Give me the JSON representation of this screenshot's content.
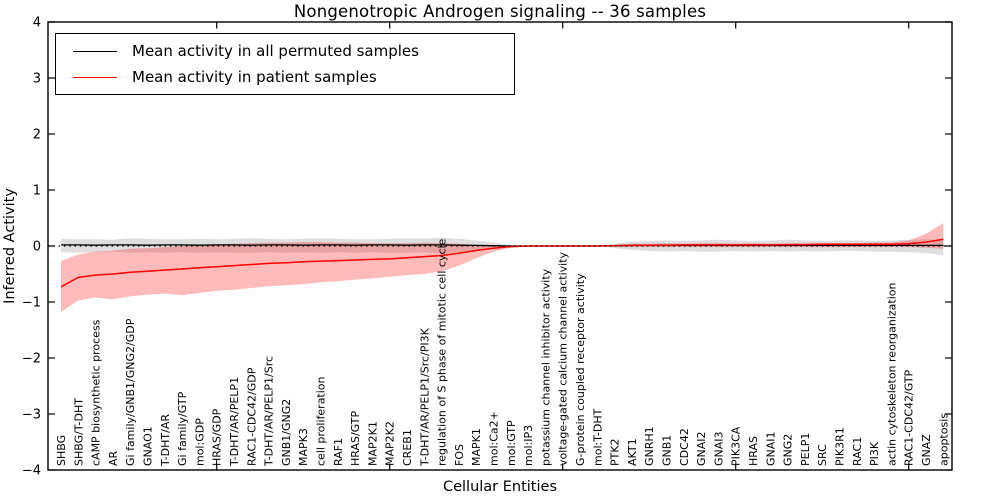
{
  "chart_data": {
    "type": "line",
    "title": "Nongenotropic Androgen signaling -- 36 samples",
    "xlabel": "Cellular Entities",
    "ylabel": "Inferred Activity",
    "ylim": [
      -4,
      4
    ],
    "yticks": [
      -4,
      -3,
      -2,
      -1,
      0,
      1,
      2,
      3,
      4
    ],
    "x_major_tick_every": 10,
    "grid": false,
    "legend_position": "upper left",
    "zero_reference_line": "dotted",
    "categories": [
      "SHBG",
      "SHBG/T-DHT",
      "cAMP biosynthetic process",
      "AR",
      "Gi family/GNB1/GNG2/GDP",
      "GNAO1",
      "T-DHT/AR",
      "Gi family/GTP",
      "mol:GDP",
      "HRAS/GDP",
      "T-DHT/AR/PELP1",
      "RAC1-CDC42/GDP",
      "T-DHT/AR/PELP1/Src",
      "GNB1/GNG2",
      "MAPK3",
      "cell proliferation",
      "RAF1",
      "HRAS/GTP",
      "MAP2K1",
      "MAP2K2",
      "CREB1",
      "T-DHT/AR/PELP1/Src/PI3K",
      "regulation of S phase of mitotic cell cycle",
      "FOS",
      "MAPK1",
      "mol:Ca2+",
      "mol:GTP",
      "mol:IP3",
      "potassium channel inhibitor activity",
      "voltage-gated calcium channel activity",
      "G-protein coupled receptor activity",
      "mol:T-DHT",
      "PTK2",
      "AKT1",
      "GNRH1",
      "GNB1",
      "CDC42",
      "GNAI2",
      "GNAI3",
      "PIK3CA",
      "HRAS",
      "GNAI1",
      "GNG2",
      "PELP1",
      "SRC",
      "PIK3R1",
      "RAC1",
      "PI3K",
      "actin cytoskeleton reorganization",
      "RAC1-CDC42/GTP",
      "GNAZ",
      "apoptosis"
    ],
    "series": [
      {
        "name": "Mean activity in all permuted samples",
        "color": "#000000",
        "band_color": "#000000",
        "band_opacity": 0.13,
        "values": [
          0.02,
          0.02,
          0.015,
          0.02,
          0.02,
          0.015,
          0.02,
          0.02,
          0.015,
          0.02,
          0.02,
          0.015,
          0.02,
          0.02,
          0.015,
          0.02,
          0.02,
          0.015,
          0.02,
          0.02,
          0.015,
          0.02,
          0.02,
          0.015,
          0.01,
          0.005,
          0,
          0,
          0,
          0,
          0,
          0,
          0.005,
          0.01,
          0.01,
          0.01,
          0.01,
          0.01,
          0.01,
          0.01,
          0.01,
          0.01,
          0.01,
          0.01,
          0.01,
          0.01,
          0.01,
          0.01,
          0.01,
          0.01,
          0.01,
          0.01
        ],
        "band_upper": [
          0.13,
          0.12,
          0.12,
          0.11,
          0.14,
          0.13,
          0.12,
          0.12,
          0.13,
          0.12,
          0.13,
          0.14,
          0.13,
          0.12,
          0.13,
          0.14,
          0.13,
          0.12,
          0.12,
          0.13,
          0.14,
          0.13,
          0.15,
          0.13,
          0.1,
          0.06,
          0.02,
          0,
          0,
          0,
          0,
          0,
          0.04,
          0.08,
          0.09,
          0.1,
          0.09,
          0.1,
          0.11,
          0.1,
          0.09,
          0.1,
          0.11,
          0.1,
          0.09,
          0.1,
          0.1,
          0.09,
          0.1,
          0.11,
          0.12,
          0.1
        ],
        "band_lower": [
          -0.11,
          -0.12,
          -0.11,
          -0.1,
          -0.12,
          -0.11,
          -0.12,
          -0.11,
          -0.12,
          -0.11,
          -0.12,
          -0.12,
          -0.11,
          -0.12,
          -0.11,
          -0.12,
          -0.11,
          -0.12,
          -0.11,
          -0.12,
          -0.12,
          -0.11,
          -0.13,
          -0.11,
          -0.09,
          -0.05,
          -0.02,
          0,
          0,
          0,
          0,
          0,
          -0.04,
          -0.07,
          -0.09,
          -0.1,
          -0.09,
          -0.1,
          -0.1,
          -0.09,
          -0.1,
          -0.09,
          -0.1,
          -0.09,
          -0.1,
          -0.09,
          -0.09,
          -0.1,
          -0.1,
          -0.11,
          -0.13,
          -0.16
        ]
      },
      {
        "name": "Mean activity in patient samples",
        "color": "#ff0000",
        "band_color": "#ff0000",
        "band_opacity": 0.27,
        "values": [
          -0.73,
          -0.56,
          -0.52,
          -0.5,
          -0.47,
          -0.45,
          -0.43,
          -0.41,
          -0.39,
          -0.37,
          -0.35,
          -0.33,
          -0.31,
          -0.3,
          -0.28,
          -0.27,
          -0.26,
          -0.25,
          -0.24,
          -0.23,
          -0.21,
          -0.19,
          -0.17,
          -0.13,
          -0.08,
          -0.04,
          -0.01,
          0,
          0,
          0,
          0,
          0,
          0.005,
          0.01,
          0.015,
          0.015,
          0.02,
          0.02,
          0.02,
          0.02,
          0.02,
          0.02,
          0.025,
          0.025,
          0.03,
          0.03,
          0.03,
          0.03,
          0.03,
          0.04,
          0.07,
          0.12
        ],
        "band_upper": [
          -0.27,
          -0.15,
          -0.1,
          -0.08,
          -0.05,
          -0.04,
          -0.02,
          0.0,
          0.02,
          0.03,
          0.04,
          0.05,
          0.06,
          0.06,
          0.07,
          0.07,
          0.06,
          0.06,
          0.05,
          0.05,
          0.05,
          0.06,
          0.05,
          0.04,
          0.02,
          0.01,
          0,
          0,
          0,
          0,
          0,
          0,
          0.02,
          0.04,
          0.04,
          0.05,
          0.04,
          0.05,
          0.05,
          0.04,
          0.05,
          0.04,
          0.05,
          0.05,
          0.05,
          0.05,
          0.05,
          0.06,
          0.06,
          0.1,
          0.22,
          0.41
        ],
        "band_lower": [
          -1.18,
          -0.97,
          -0.92,
          -0.95,
          -0.9,
          -0.87,
          -0.85,
          -0.88,
          -0.84,
          -0.8,
          -0.78,
          -0.75,
          -0.72,
          -0.7,
          -0.68,
          -0.65,
          -0.63,
          -0.6,
          -0.58,
          -0.55,
          -0.52,
          -0.5,
          -0.45,
          -0.35,
          -0.22,
          -0.1,
          -0.03,
          0,
          0,
          0,
          0,
          0,
          -0.01,
          -0.02,
          -0.02,
          -0.02,
          -0.02,
          -0.02,
          -0.02,
          -0.02,
          -0.02,
          -0.02,
          -0.02,
          -0.02,
          -0.02,
          -0.02,
          -0.02,
          -0.02,
          -0.02,
          -0.02,
          -0.03,
          -0.05
        ]
      }
    ]
  }
}
